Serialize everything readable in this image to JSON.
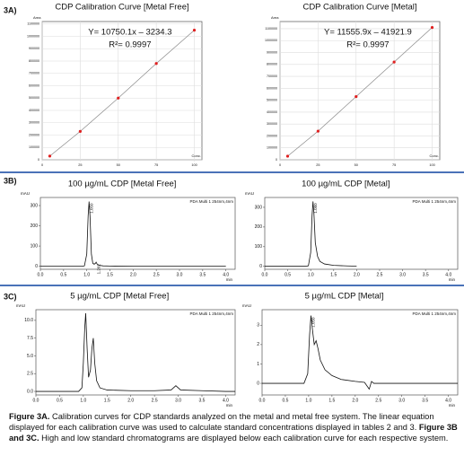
{
  "panel_labels": [
    "3A)",
    "3B)",
    "3C)"
  ],
  "chart_data": [
    {
      "type": "scatter",
      "title": "CDP Calibration Curve [Metal Free]",
      "equation": "Y= 10750.1x – 3234.3",
      "r_squared": "R²= 0.9997",
      "xlabel": "Conc.",
      "ylabel": "Area",
      "grid": true,
      "color": "#e02020",
      "line_color": "#888888",
      "x": [
        5,
        25,
        50,
        75,
        100
      ],
      "values": [
        30000,
        230000,
        500000,
        780000,
        1050000
      ],
      "xlim": [
        0,
        105
      ],
      "xticks": [
        0,
        25,
        50,
        75,
        100
      ],
      "ylim": [
        0,
        1120000
      ],
      "yticks": [
        0,
        100000,
        200000,
        300000,
        400000,
        500000,
        600000,
        700000,
        800000,
        900000,
        1000000,
        1100000
      ]
    },
    {
      "type": "scatter",
      "title": "CDP Calibration Curve [Metal]",
      "equation": "Y= 11555.9x – 41921.9",
      "r_squared": "R²= 0.9997",
      "xlabel": "Conc.",
      "ylabel": "Area",
      "grid": true,
      "color": "#e02020",
      "line_color": "#888888",
      "x": [
        5,
        25,
        50,
        75,
        100
      ],
      "values": [
        30000,
        240000,
        530000,
        820000,
        1110000
      ],
      "xlim": [
        0,
        105
      ],
      "xticks": [
        0,
        25,
        50,
        75,
        100
      ],
      "ylim": [
        0,
        1160000
      ],
      "yticks": [
        0,
        100000,
        200000,
        300000,
        400000,
        500000,
        600000,
        700000,
        800000,
        900000,
        1000000,
        1100000
      ]
    },
    {
      "type": "line",
      "title": "100 µg/mL CDP [Metal Free]",
      "legend": "PDA Multi 1 254nm,4nm",
      "xlabel": "min",
      "ylabel": "mAU",
      "grid": false,
      "color": "#111111",
      "x": [
        0,
        0.5,
        0.9,
        0.95,
        1.0,
        1.03,
        1.05,
        1.07,
        1.1,
        1.13,
        1.16,
        1.19,
        1.202,
        1.22,
        1.26,
        1.35,
        1.5,
        2.0,
        2.5,
        3.0,
        3.5,
        4.0
      ],
      "values": [
        0,
        0,
        0,
        2,
        60,
        250,
        320,
        250,
        60,
        15,
        10,
        15,
        20,
        12,
        5,
        2,
        1,
        0,
        0,
        0,
        0,
        0
      ],
      "peak_times": [
        1.05,
        1.202
      ],
      "peak_time_labels": [
        "1.050",
        "1.202"
      ],
      "xlim": [
        0,
        4.2
      ],
      "ylim": [
        -15,
        340
      ],
      "yticks": [
        0,
        100,
        200,
        300
      ],
      "xticks": [
        {
          "value": 0,
          "label": "0.0"
        },
        {
          "value": 0.5,
          "label": "0.5"
        },
        {
          "value": 1,
          "label": "1.0"
        },
        {
          "value": 1.5,
          "label": "1.5"
        },
        {
          "value": 2,
          "label": "2.0"
        },
        {
          "value": 2.5,
          "label": "2.5"
        },
        {
          "value": 3,
          "label": "3.0"
        },
        {
          "value": 3.5,
          "label": "3.5"
        },
        {
          "value": 4,
          "label": "4.0"
        }
      ]
    },
    {
      "type": "line",
      "title": "100 µg/mL CDP [Metal]",
      "legend": "PDA Multi 1 254nm,4nm",
      "xlabel": "min",
      "ylabel": "mAU",
      "grid": false,
      "color": "#111111",
      "x": [
        0,
        0.5,
        0.9,
        0.95,
        1.0,
        1.03,
        1.05,
        1.07,
        1.1,
        1.15,
        1.2,
        1.3,
        1.5,
        1.8,
        2.0
      ],
      "values": [
        0,
        0,
        0,
        3,
        70,
        260,
        330,
        270,
        120,
        50,
        25,
        12,
        5,
        2,
        1
      ],
      "peak_times": [
        1.05
      ],
      "peak_time_labels": [
        "1.050"
      ],
      "xlim": [
        0,
        4.2
      ],
      "ylim": [
        -15,
        350
      ],
      "yticks": [
        0,
        100,
        200,
        300
      ],
      "xticks": [
        {
          "value": 0,
          "label": "0.0"
        },
        {
          "value": 0.5,
          "label": "0.5"
        },
        {
          "value": 1,
          "label": "1.0"
        },
        {
          "value": 1.5,
          "label": "1.5"
        },
        {
          "value": 2,
          "label": "2.0"
        },
        {
          "value": 2.5,
          "label": "2.5"
        },
        {
          "value": 3,
          "label": "3.0"
        },
        {
          "value": 3.5,
          "label": "3.5"
        },
        {
          "value": 4,
          "label": "4.0"
        }
      ]
    },
    {
      "type": "line",
      "title": "5 µg/mL CDP   [Metal Free]",
      "legend": "PDA Multi 1 254nm,4nm",
      "xlabel": "min",
      "ylabel": "mAU",
      "grid": false,
      "color": "#111111",
      "x": [
        0,
        0.5,
        0.9,
        0.97,
        1.0,
        1.03,
        1.05,
        1.08,
        1.11,
        1.15,
        1.18,
        1.21,
        1.24,
        1.28,
        1.35,
        1.5,
        2.0,
        2.5,
        2.85,
        2.95,
        3.05,
        3.5,
        4.0,
        4.2
      ],
      "values": [
        0,
        0,
        0,
        0.5,
        4,
        9,
        11,
        6,
        2,
        3,
        6,
        7.5,
        4,
        1.5,
        0.5,
        0.2,
        0.1,
        0.1,
        0.2,
        0.8,
        0.2,
        0.1,
        0,
        0
      ],
      "peak_times": [],
      "peak_time_labels": [],
      "xlim": [
        0,
        4.2
      ],
      "ylim": [
        -0.5,
        11.5
      ],
      "yticks": [
        {
          "value": 0,
          "label": "0.0"
        },
        {
          "value": 2.5,
          "label": "2.5"
        },
        {
          "value": 5,
          "label": "5.0"
        },
        {
          "value": 7.5,
          "label": "7.5"
        },
        {
          "value": 10,
          "label": "10.0"
        }
      ],
      "xticks": [
        {
          "value": 0,
          "label": "0.0"
        },
        {
          "value": 0.5,
          "label": "0.5"
        },
        {
          "value": 1,
          "label": "1.0"
        },
        {
          "value": 1.5,
          "label": "1.5"
        },
        {
          "value": 2,
          "label": "2.0"
        },
        {
          "value": 2.5,
          "label": "2.5"
        },
        {
          "value": 3,
          "label": "3.0"
        },
        {
          "value": 3.5,
          "label": "3.5"
        },
        {
          "value": 4,
          "label": "4.0"
        }
      ]
    },
    {
      "type": "line",
      "title": "5 µg/mL CDP [Metal]",
      "legend": "PDA Multi 1 254nm,4nm",
      "xlabel": "min",
      "ylabel": "mAU",
      "grid": false,
      "color": "#111111",
      "x": [
        0,
        0.5,
        0.9,
        0.98,
        1.02,
        1.05,
        1.08,
        1.12,
        1.16,
        1.2,
        1.25,
        1.35,
        1.5,
        1.7,
        2.0,
        2.2,
        2.3,
        2.35,
        2.4,
        2.6,
        3.0,
        3.5,
        4.0,
        4.2
      ],
      "values": [
        0,
        0,
        0,
        0.5,
        2.5,
        3.5,
        2.8,
        2.0,
        2.2,
        1.8,
        1.2,
        0.7,
        0.4,
        0.2,
        0.1,
        0.05,
        -0.3,
        0.1,
        0,
        0,
        0,
        0,
        0,
        0
      ],
      "peak_times": [
        1.05
      ],
      "peak_time_labels": [
        "1.050"
      ],
      "xlim": [
        0,
        4.2
      ],
      "ylim": [
        -0.6,
        3.8
      ],
      "yticks": [
        0,
        1,
        2,
        3
      ],
      "xticks": [
        {
          "value": 0,
          "label": "0.0"
        },
        {
          "value": 0.5,
          "label": "0.5"
        },
        {
          "value": 1,
          "label": "1.0"
        },
        {
          "value": 1.5,
          "label": "1.5"
        },
        {
          "value": 2,
          "label": "2.0"
        },
        {
          "value": 2.5,
          "label": "2.5"
        },
        {
          "value": 3,
          "label": "3.0"
        },
        {
          "value": 3.5,
          "label": "3.5"
        },
        {
          "value": 4,
          "label": "4.0"
        }
      ]
    }
  ],
  "caption": [
    {
      "text": "Figure 3A.",
      "bold": true
    },
    {
      "text": " Calibration curves for CDP standards analyzed on the metal and metal free system. The linear equation displayed for each calibration curve was used to calculate standard concentrations displayed in tables 2 and 3. ",
      "bold": false
    },
    {
      "text": "Figure 3B and 3C.",
      "bold": true
    },
    {
      "text": " High and low standard chromatograms are displayed  below each calibration curve for each respective system.",
      "bold": false
    }
  ]
}
